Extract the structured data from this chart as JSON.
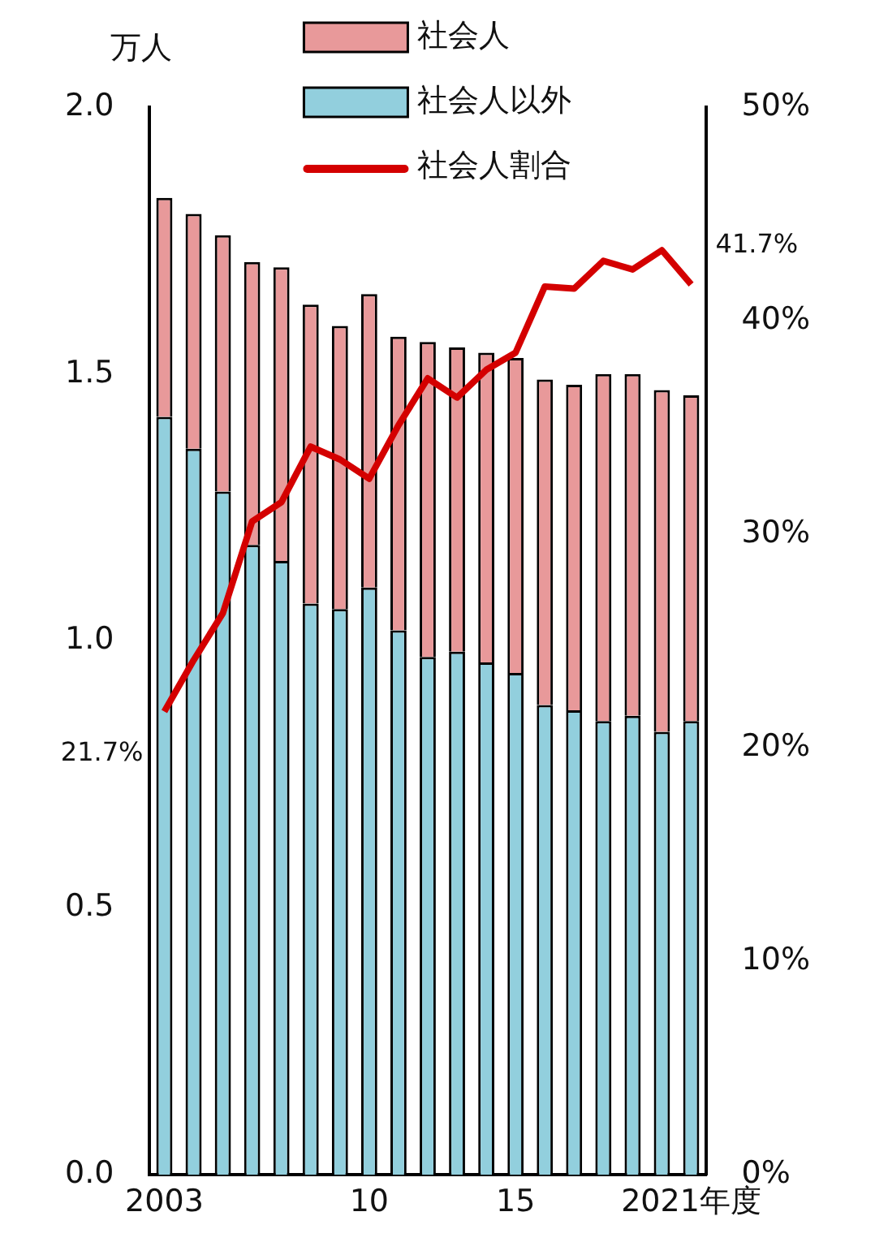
{
  "chart_data": {
    "type": "bar",
    "stacked": true,
    "ylabel": "万人",
    "legend": "top",
    "categories": [
      "2003",
      null,
      null,
      null,
      null,
      null,
      null,
      "10",
      null,
      null,
      null,
      null,
      "15",
      null,
      null,
      null,
      null,
      null,
      "2021年度"
    ],
    "series": [
      {
        "name": "社会人以外",
        "color": "#92cfdd",
        "values": [
          1.42,
          1.36,
          1.28,
          1.18,
          1.15,
          1.07,
          1.06,
          1.1,
          1.02,
          0.97,
          0.98,
          0.96,
          0.94,
          0.88,
          0.87,
          0.85,
          0.86,
          0.83,
          0.85
        ]
      },
      {
        "name": "社会人",
        "color": "#e8999a",
        "values": [
          0.41,
          0.44,
          0.48,
          0.53,
          0.55,
          0.56,
          0.53,
          0.55,
          0.55,
          0.59,
          0.57,
          0.58,
          0.59,
          0.61,
          0.61,
          0.65,
          0.64,
          0.64,
          0.61
        ]
      },
      {
        "name": "社会人割合",
        "type": "line",
        "axis": "y2",
        "color": "#d40000",
        "values": [
          21.7,
          24.1,
          26.3,
          30.6,
          31.5,
          34.1,
          33.5,
          32.6,
          35.1,
          37.3,
          36.4,
          37.7,
          38.5,
          41.6,
          41.5,
          42.8,
          42.4,
          43.3,
          41.7
        ],
        "value_labels": [
          "21.7%",
          null,
          null,
          null,
          null,
          null,
          null,
          null,
          null,
          null,
          null,
          null,
          null,
          null,
          null,
          null,
          null,
          null,
          "41.7%"
        ]
      }
    ],
    "ylim": [
      0,
      2
    ],
    "yticks": [
      {
        "value": 0,
        "label": "0.0"
      },
      {
        "value": 0.5,
        "label": "0.5"
      },
      {
        "value": 1,
        "label": "1.0"
      },
      {
        "value": 1.5,
        "label": "1.5"
      },
      {
        "value": 2,
        "label": "2.0"
      }
    ],
    "y2lim": [
      0,
      50
    ],
    "y2ticks": [
      {
        "value": 0,
        "label": "0%"
      },
      {
        "value": 10,
        "label": "10%"
      },
      {
        "value": 20,
        "label": "20%"
      },
      {
        "value": 30,
        "label": "30%"
      },
      {
        "value": 40,
        "label": "40%"
      },
      {
        "value": 50,
        "label": "50%"
      }
    ]
  }
}
